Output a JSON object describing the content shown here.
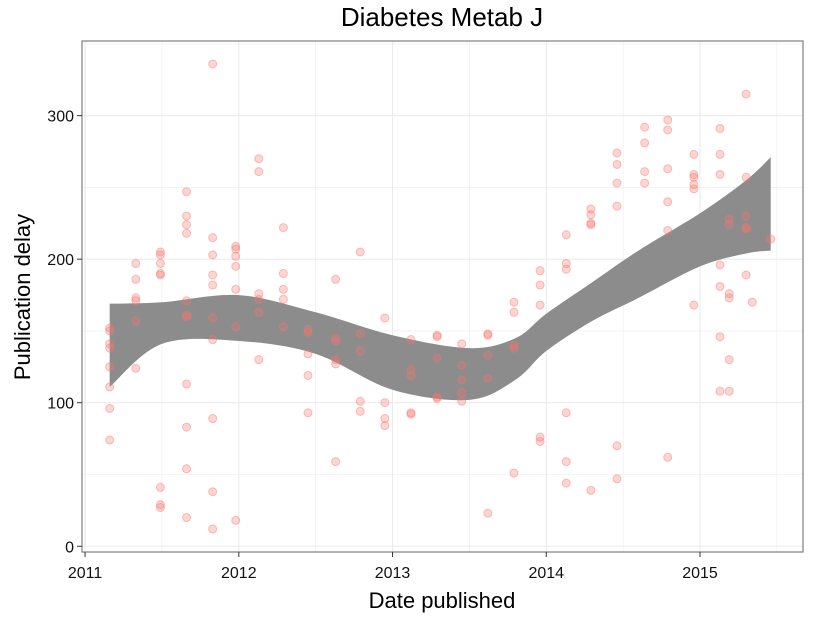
{
  "chart_data": {
    "type": "scatter",
    "title": "Diabetes Metab J",
    "xlabel": "Date published",
    "ylabel": "Publication delay",
    "xlim": [
      2010.98,
      2015.67
    ],
    "ylim": [
      -4,
      352
    ],
    "x_ticks": [
      2011,
      2012,
      2013,
      2014,
      2015
    ],
    "x_tick_labels": [
      "2011",
      "2012",
      "2013",
      "2014",
      "2015"
    ],
    "y_ticks": [
      0,
      100,
      200,
      300
    ],
    "y_tick_labels": [
      "0",
      "100",
      "200",
      "300"
    ],
    "grid": true,
    "colors": {
      "points": "#f8766d",
      "band": "#8c8c8c",
      "grid": "#ebebeb",
      "panel_border": "#7f7f7f"
    },
    "series": [
      {
        "values": [
          [
            2011.16,
            152
          ],
          [
            2011.16,
            150
          ],
          [
            2011.16,
            141
          ],
          [
            2011.16,
            138
          ],
          [
            2011.16,
            125
          ],
          [
            2011.16,
            111
          ],
          [
            2011.16,
            96
          ],
          [
            2011.16,
            74
          ],
          [
            2011.33,
            197
          ],
          [
            2011.33,
            186
          ],
          [
            2011.33,
            173
          ],
          [
            2011.33,
            171
          ],
          [
            2011.33,
            157
          ],
          [
            2011.33,
            124
          ],
          [
            2011.49,
            205
          ],
          [
            2011.49,
            203
          ],
          [
            2011.49,
            197
          ],
          [
            2011.49,
            190
          ],
          [
            2011.49,
            189
          ],
          [
            2011.49,
            41
          ],
          [
            2011.49,
            29
          ],
          [
            2011.49,
            27
          ],
          [
            2011.66,
            247
          ],
          [
            2011.66,
            230
          ],
          [
            2011.66,
            224
          ],
          [
            2011.66,
            218
          ],
          [
            2011.66,
            171
          ],
          [
            2011.66,
            161
          ],
          [
            2011.66,
            160
          ],
          [
            2011.66,
            113
          ],
          [
            2011.66,
            83
          ],
          [
            2011.66,
            54
          ],
          [
            2011.66,
            20
          ],
          [
            2011.83,
            336
          ],
          [
            2011.83,
            215
          ],
          [
            2011.83,
            203
          ],
          [
            2011.83,
            189
          ],
          [
            2011.83,
            182
          ],
          [
            2011.83,
            159
          ],
          [
            2011.83,
            144
          ],
          [
            2011.83,
            89
          ],
          [
            2011.83,
            38
          ],
          [
            2011.83,
            12
          ],
          [
            2011.98,
            209
          ],
          [
            2011.98,
            207
          ],
          [
            2011.98,
            202
          ],
          [
            2011.98,
            195
          ],
          [
            2011.98,
            179
          ],
          [
            2011.98,
            153
          ],
          [
            2011.98,
            18
          ],
          [
            2012.13,
            270
          ],
          [
            2012.13,
            261
          ],
          [
            2012.13,
            176
          ],
          [
            2012.13,
            172
          ],
          [
            2012.13,
            163
          ],
          [
            2012.13,
            130
          ],
          [
            2012.29,
            222
          ],
          [
            2012.29,
            190
          ],
          [
            2012.29,
            179
          ],
          [
            2012.29,
            172
          ],
          [
            2012.29,
            153
          ],
          [
            2012.45,
            151
          ],
          [
            2012.45,
            149
          ],
          [
            2012.45,
            134
          ],
          [
            2012.45,
            119
          ],
          [
            2012.45,
            93
          ],
          [
            2012.63,
            186
          ],
          [
            2012.63,
            145
          ],
          [
            2012.63,
            143
          ],
          [
            2012.63,
            130
          ],
          [
            2012.63,
            127
          ],
          [
            2012.63,
            59
          ],
          [
            2012.79,
            205
          ],
          [
            2012.79,
            148
          ],
          [
            2012.79,
            136
          ],
          [
            2012.79,
            101
          ],
          [
            2012.79,
            94
          ],
          [
            2012.95,
            159
          ],
          [
            2012.95,
            100
          ],
          [
            2012.95,
            89
          ],
          [
            2012.95,
            84
          ],
          [
            2013.12,
            144
          ],
          [
            2013.12,
            123
          ],
          [
            2013.12,
            119
          ],
          [
            2013.12,
            93
          ],
          [
            2013.12,
            92
          ],
          [
            2013.29,
            147
          ],
          [
            2013.29,
            146
          ],
          [
            2013.29,
            131
          ],
          [
            2013.29,
            104
          ],
          [
            2013.29,
            103
          ],
          [
            2013.45,
            141
          ],
          [
            2013.45,
            126
          ],
          [
            2013.45,
            116
          ],
          [
            2013.45,
            107
          ],
          [
            2013.45,
            101
          ],
          [
            2013.62,
            148
          ],
          [
            2013.62,
            147
          ],
          [
            2013.62,
            133
          ],
          [
            2013.62,
            117
          ],
          [
            2013.62,
            23
          ],
          [
            2013.79,
            170
          ],
          [
            2013.79,
            163
          ],
          [
            2013.79,
            140
          ],
          [
            2013.79,
            138
          ],
          [
            2013.79,
            51
          ],
          [
            2013.96,
            192
          ],
          [
            2013.96,
            182
          ],
          [
            2013.96,
            168
          ],
          [
            2013.96,
            76
          ],
          [
            2013.96,
            73
          ],
          [
            2014.13,
            217
          ],
          [
            2014.13,
            197
          ],
          [
            2014.13,
            193
          ],
          [
            2014.13,
            93
          ],
          [
            2014.13,
            59
          ],
          [
            2014.13,
            44
          ],
          [
            2014.29,
            235
          ],
          [
            2014.29,
            231
          ],
          [
            2014.29,
            225
          ],
          [
            2014.29,
            224
          ],
          [
            2014.29,
            39
          ],
          [
            2014.46,
            274
          ],
          [
            2014.46,
            266
          ],
          [
            2014.46,
            253
          ],
          [
            2014.46,
            237
          ],
          [
            2014.46,
            70
          ],
          [
            2014.46,
            47
          ],
          [
            2014.64,
            292
          ],
          [
            2014.64,
            281
          ],
          [
            2014.64,
            261
          ],
          [
            2014.64,
            253
          ],
          [
            2014.79,
            297
          ],
          [
            2014.79,
            290
          ],
          [
            2014.79,
            263
          ],
          [
            2014.79,
            240
          ],
          [
            2014.79,
            220
          ],
          [
            2014.79,
            62
          ],
          [
            2014.96,
            273
          ],
          [
            2014.96,
            259
          ],
          [
            2014.96,
            257
          ],
          [
            2014.96,
            252
          ],
          [
            2014.96,
            249
          ],
          [
            2014.96,
            168
          ],
          [
            2015.13,
            291
          ],
          [
            2015.13,
            273
          ],
          [
            2015.13,
            259
          ],
          [
            2015.13,
            196
          ],
          [
            2015.13,
            181
          ],
          [
            2015.13,
            146
          ],
          [
            2015.13,
            108
          ],
          [
            2015.19,
            228
          ],
          [
            2015.19,
            224
          ],
          [
            2015.19,
            176
          ],
          [
            2015.19,
            173
          ],
          [
            2015.19,
            130
          ],
          [
            2015.19,
            108
          ],
          [
            2015.3,
            315
          ],
          [
            2015.3,
            257
          ],
          [
            2015.3,
            230
          ],
          [
            2015.3,
            222
          ],
          [
            2015.3,
            221
          ],
          [
            2015.3,
            189
          ],
          [
            2015.34,
            170
          ],
          [
            2015.46,
            214
          ]
        ]
      }
    ],
    "smooth_band": {
      "x": [
        2011.16,
        2011.5,
        2012.0,
        2012.5,
        2013.0,
        2013.5,
        2013.8,
        2014.0,
        2014.3,
        2014.6,
        2015.0,
        2015.3,
        2015.46
      ],
      "upper": [
        169,
        170,
        175,
        163,
        147,
        138,
        145,
        162,
        184,
        206,
        232,
        255,
        271
      ],
      "lower": [
        111,
        141,
        143,
        134,
        109,
        102,
        116,
        136,
        157,
        173,
        195,
        204,
        206
      ]
    }
  }
}
